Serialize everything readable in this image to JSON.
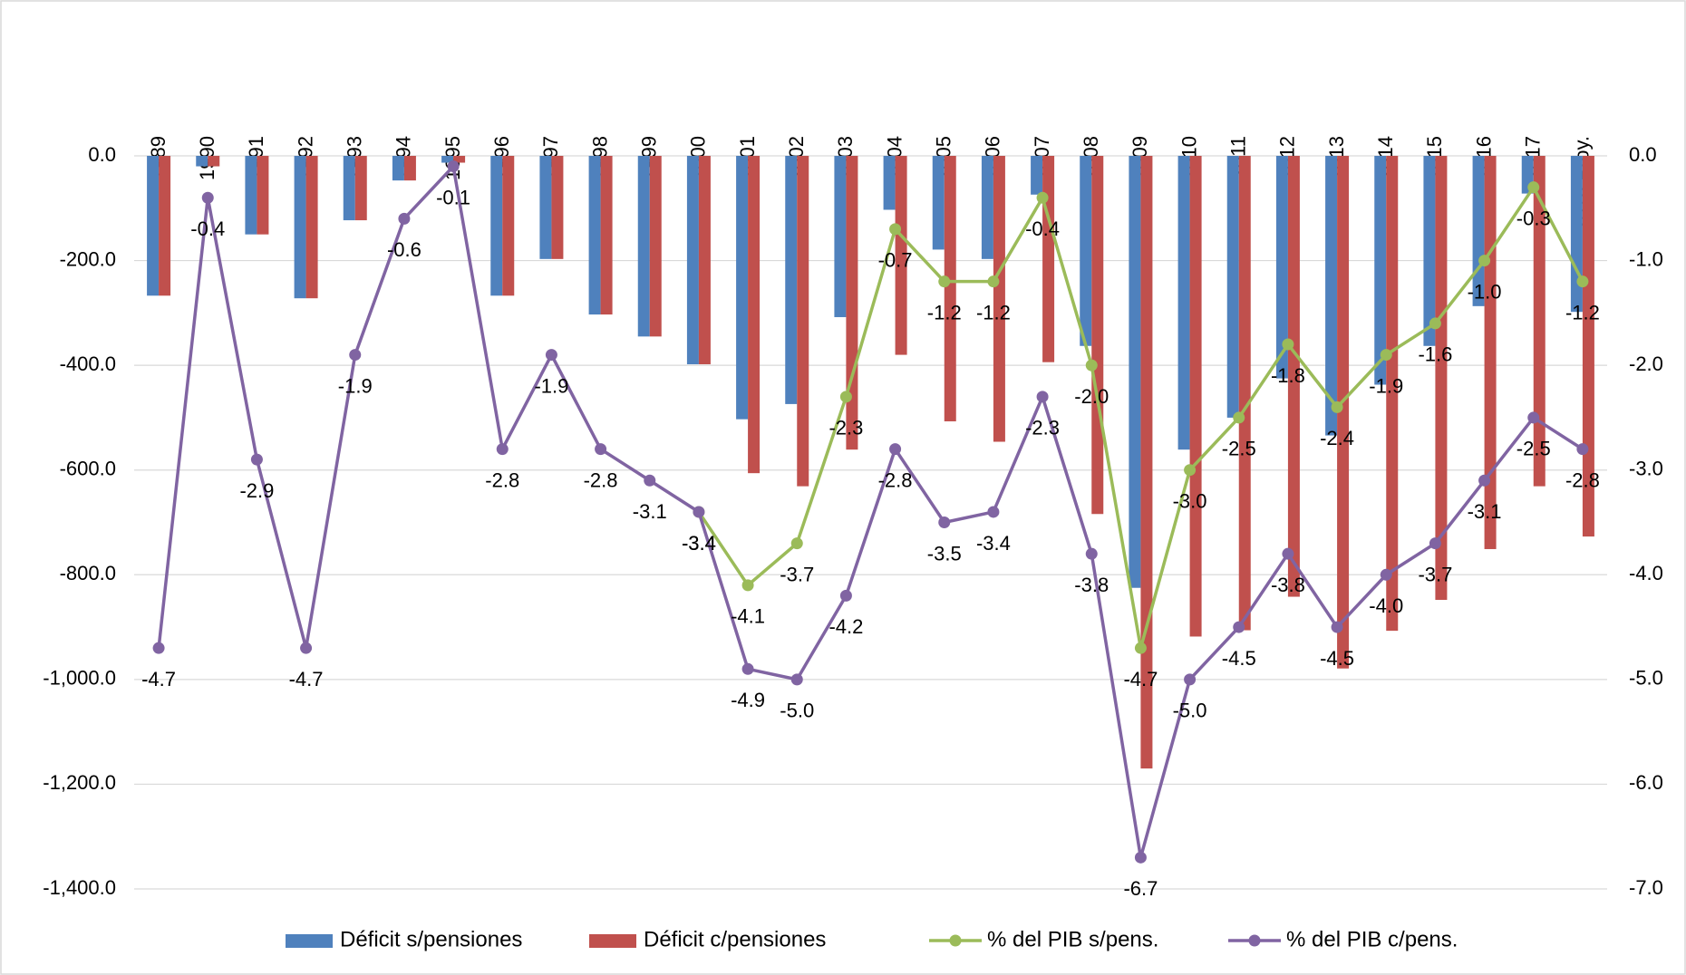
{
  "chart_data": {
    "type": "bar",
    "categories": [
      "1989",
      "1990",
      "1991",
      "1992",
      "1993",
      "1994",
      "1995",
      "1996",
      "1997",
      "1998",
      "1999",
      "2000",
      "2001",
      "2002",
      "2003",
      "2004",
      "2005",
      "2006",
      "2007",
      "2008",
      "2009",
      "2010",
      "2011",
      "2012",
      "2013",
      "2014",
      "2015",
      "2016",
      "2017",
      "2018 Proy."
    ],
    "series": [
      {
        "name": "Déficit s/pensiones",
        "type": "bar",
        "color": "#4f81bd",
        "values": [
          -267,
          -20,
          -150,
          -272,
          -123,
          -47,
          -13,
          -267,
          -197,
          -303,
          -345,
          -398,
          -503,
          -474,
          -308,
          -103,
          -179,
          -197,
          -74,
          -363,
          -825,
          -561,
          -500,
          -425,
          -534,
          -437,
          -363,
          -287,
          -72,
          -298
        ]
      },
      {
        "name": "Déficit c/pensiones",
        "type": "bar",
        "color": "#c0504d",
        "values": [
          -267,
          -20,
          -150,
          -272,
          -123,
          -47,
          -13,
          -267,
          -197,
          -303,
          -345,
          -398,
          -606,
          -631,
          -561,
          -380,
          -507,
          -546,
          -394,
          -684,
          -1170,
          -918,
          -906,
          -842,
          -979,
          -907,
          -848,
          -751,
          -631,
          -727
        ]
      },
      {
        "name": "% del PIB s/pens.",
        "type": "line",
        "axis": "y2",
        "color": "#9bbb59",
        "values": [
          null,
          null,
          null,
          null,
          null,
          null,
          null,
          null,
          null,
          null,
          null,
          -3.4,
          -4.1,
          -3.7,
          -2.3,
          -0.7,
          -1.2,
          -1.2,
          -0.4,
          -2.0,
          -4.7,
          -3.0,
          -2.5,
          -1.8,
          -2.4,
          -1.9,
          -1.6,
          -1.0,
          -0.3,
          -1.2
        ],
        "value_labels": [
          null,
          null,
          null,
          null,
          null,
          null,
          null,
          null,
          null,
          null,
          null,
          "-3.4",
          "-4.1",
          "-3.7",
          "-2.3",
          "-0.7",
          "-1.2",
          "-1.2",
          "-0.4",
          "-2.0",
          "-4.7",
          "-3.0",
          "-2.5",
          "-1.8",
          "-2.4",
          "-1.9",
          "-1.6",
          "-1.0",
          "-0.3",
          "-1.2"
        ]
      },
      {
        "name": "% del PIB c/pens.",
        "type": "line",
        "axis": "y2",
        "color": "#8064a2",
        "values": [
          -4.7,
          -0.4,
          -2.9,
          -4.7,
          -1.9,
          -0.6,
          -0.1,
          -2.8,
          -1.9,
          -2.8,
          -3.1,
          -3.4,
          -4.9,
          -5.0,
          -4.2,
          -2.8,
          -3.5,
          -3.4,
          -2.3,
          -3.8,
          -6.7,
          -5.0,
          -4.5,
          -3.8,
          -4.5,
          -4.0,
          -3.7,
          -3.1,
          -2.5,
          -2.8
        ],
        "value_labels": [
          "-4.7",
          "-0.4",
          "-2.9",
          "-4.7",
          "-1.9",
          "-0.6",
          "-0.1",
          "-2.8",
          "-1.9",
          "-2.8",
          "-3.1",
          "-3.4",
          "-4.9",
          "-5.0",
          "-4.2",
          "-2.8",
          "-3.5",
          "-3.4",
          "-2.3",
          "-3.8",
          "-6.7",
          "-5.0",
          "-4.5",
          "-3.8",
          "-4.5",
          "-4.0",
          "-3.7",
          "-3.1",
          "-2.5",
          "-2.8"
        ]
      }
    ],
    "ylim": [
      -1400,
      0
    ],
    "yticks": [
      {
        "value": 0,
        "label": "0.0"
      },
      {
        "value": -200,
        "label": "-200.0"
      },
      {
        "value": -400,
        "label": "-400.0"
      },
      {
        "value": -600,
        "label": "-600.0"
      },
      {
        "value": -800,
        "label": "-800.0"
      },
      {
        "value": -1000,
        "label": "-1,000.0"
      },
      {
        "value": -1200,
        "label": "-1,200.0"
      },
      {
        "value": -1400,
        "label": "-1,400.0"
      }
    ],
    "y2lim": [
      -7,
      0
    ],
    "y2ticks": [
      {
        "value": 0,
        "label": "0.0"
      },
      {
        "value": -1,
        "label": "-1.0"
      },
      {
        "value": -2,
        "label": "-2.0"
      },
      {
        "value": -3,
        "label": "-3.0"
      },
      {
        "value": -4,
        "label": "-4.0"
      },
      {
        "value": -5,
        "label": "-5.0"
      },
      {
        "value": -6,
        "label": "-6.0"
      },
      {
        "value": -7,
        "label": "-7.0"
      }
    ],
    "grid": true,
    "legend": "bottom"
  }
}
